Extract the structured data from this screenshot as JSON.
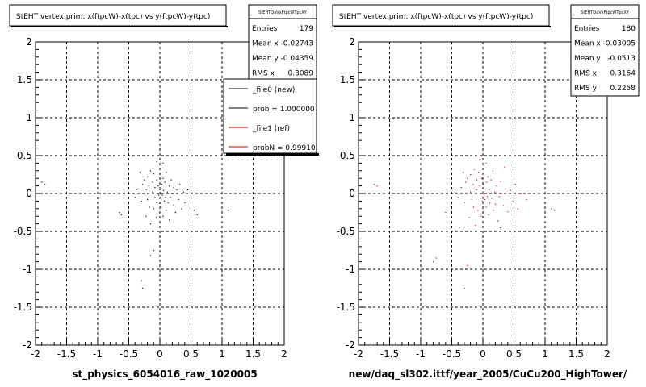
{
  "chart_data": [
    {
      "type": "scatter",
      "title": "StEHT  vertex,prim: x(ftpcW)-x(tpc) vs y(ftpcW)-y(tpc)",
      "xlabel": "st_physics_6054016_raw_1020005",
      "xlim": [
        -2,
        2
      ],
      "ylim": [
        -2,
        2
      ],
      "xticks": [
        "-2",
        "-1.5",
        "-1",
        "-0.5",
        "0",
        "0.5",
        "1",
        "1.5",
        "2"
      ],
      "yticks": [
        "-2",
        "-1.5",
        "-1",
        "-0.5",
        "0",
        "0.5",
        "1",
        "1.5",
        "2"
      ],
      "grid": true,
      "marker_color": "#000000",
      "stats": {
        "name": "StEHTQaVxFtpcWTpcXY",
        "rows": [
          {
            "label": "Entries",
            "value": "179"
          },
          {
            "label": "Mean x",
            "value": "-0.02743"
          },
          {
            "label": "Mean y",
            "value": "-0.04359"
          },
          {
            "label": "RMS x",
            "value": "0.3089"
          }
        ]
      },
      "legend": {
        "placement": "top-right",
        "entries": [
          {
            "label": "_file0 (new)",
            "color": "#000000"
          },
          {
            "label": "prob = 1.000000",
            "color": "#000000"
          },
          {
            "label": "_file1 (ref)",
            "color": "#cc0000"
          },
          {
            "label": "probN = 0.99910",
            "color": "#cc0000"
          }
        ]
      },
      "points": [
        [
          -1.9,
          0.15
        ],
        [
          -1.85,
          0.12
        ],
        [
          -0.65,
          -0.25
        ],
        [
          -0.62,
          -0.28
        ],
        [
          -0.4,
          -0.05
        ],
        [
          -0.38,
          0.05
        ],
        [
          -0.32,
          0.28
        ],
        [
          -0.3,
          -0.1
        ],
        [
          -0.28,
          0.12
        ],
        [
          -0.25,
          0.18
        ],
        [
          -0.22,
          -0.3
        ],
        [
          -0.22,
          0.05
        ],
        [
          -0.2,
          0.22
        ],
        [
          -0.2,
          -0.08
        ],
        [
          -0.18,
          0.1
        ],
        [
          -0.17,
          -0.18
        ],
        [
          -0.15,
          0.3
        ],
        [
          -0.15,
          -0.4
        ],
        [
          -0.12,
          0.02
        ],
        [
          -0.12,
          0.15
        ],
        [
          -0.1,
          -0.2
        ],
        [
          -0.1,
          0.26
        ],
        [
          -0.08,
          0.08
        ],
        [
          -0.08,
          -0.05
        ],
        [
          -0.06,
          -0.32
        ],
        [
          -0.05,
          0.18
        ],
        [
          -0.05,
          -0.12
        ],
        [
          -0.04,
          0.0
        ],
        [
          -0.03,
          0.1
        ],
        [
          -0.02,
          -0.02
        ],
        [
          0.0,
          -0.05
        ],
        [
          0.0,
          0.05
        ],
        [
          0.01,
          0.0
        ],
        [
          0.02,
          -0.08
        ],
        [
          0.02,
          -0.18
        ],
        [
          0.03,
          0.12
        ],
        [
          0.04,
          -0.02
        ],
        [
          0.05,
          0.2
        ],
        [
          0.05,
          -0.3
        ],
        [
          0.06,
          0.04
        ],
        [
          0.07,
          -0.1
        ],
        [
          0.08,
          0.15
        ],
        [
          0.09,
          -0.05
        ],
        [
          0.1,
          0.28
        ],
        [
          0.1,
          -0.22
        ],
        [
          0.12,
          0.02
        ],
        [
          0.13,
          -0.12
        ],
        [
          0.15,
          0.1
        ],
        [
          0.15,
          -0.35
        ],
        [
          0.17,
          -0.05
        ],
        [
          0.18,
          0.18
        ],
        [
          0.2,
          0.0
        ],
        [
          0.22,
          -0.15
        ],
        [
          0.22,
          0.08
        ],
        [
          0.25,
          -0.25
        ],
        [
          0.27,
          0.05
        ],
        [
          0.3,
          -0.08
        ],
        [
          0.32,
          0.12
        ],
        [
          0.35,
          -0.2
        ],
        [
          0.38,
          0.02
        ],
        [
          0.4,
          -0.12
        ],
        [
          0.45,
          0.05
        ],
        [
          0.5,
          -0.05
        ],
        [
          0.55,
          -0.22
        ],
        [
          0.6,
          -0.28
        ],
        [
          1.1,
          -0.22
        ],
        [
          -0.15,
          -0.82
        ],
        [
          -0.1,
          -0.75
        ],
        [
          -0.3,
          -1.15
        ],
        [
          -0.28,
          -1.25
        ],
        [
          0.05,
          0.4
        ],
        [
          -0.05,
          0.42
        ]
      ]
    },
    {
      "type": "scatter",
      "title": "StEHT  vertex,prim: x(ftpcW)-x(tpc) vs y(ftpcW)-y(tpc)",
      "xlabel": "new/daq_sl302.ittf/year_2005/CuCu200_HighTower/",
      "xlim": [
        -2,
        2
      ],
      "ylim": [
        -2,
        2
      ],
      "xticks": [
        "-2",
        "-1.5",
        "-1",
        "-0.5",
        "0",
        "0.5",
        "1",
        "1.5",
        "2"
      ],
      "yticks": [
        "-2",
        "-1.5",
        "-1",
        "-0.5",
        "0",
        "0.5",
        "1",
        "1.5",
        "2"
      ],
      "grid": true,
      "marker_color": "#cc0000",
      "stats": {
        "name": "StEHTQaVxFtpcWTpcXY",
        "rows": [
          {
            "label": "Entries",
            "value": "180"
          },
          {
            "label": "Mean x",
            "value": "-0.03005"
          },
          {
            "label": "Mean y",
            "value": "-0.0513"
          },
          {
            "label": "RMS x",
            "value": "0.3164"
          },
          {
            "label": "RMS y",
            "value": "0.2258"
          }
        ]
      },
      "points": [
        [
          -1.75,
          0.12
        ],
        [
          -1.7,
          0.1
        ],
        [
          -0.8,
          -0.9
        ],
        [
          -0.75,
          -0.85
        ],
        [
          -0.6,
          -0.25
        ],
        [
          -0.4,
          -0.05
        ],
        [
          -0.35,
          0.08
        ],
        [
          -0.32,
          0.28
        ],
        [
          -0.3,
          -0.12
        ],
        [
          -0.28,
          0.15
        ],
        [
          -0.25,
          0.2
        ],
        [
          -0.22,
          -0.32
        ],
        [
          -0.2,
          0.02
        ],
        [
          -0.2,
          0.25
        ],
        [
          -0.18,
          -0.08
        ],
        [
          -0.16,
          0.12
        ],
        [
          -0.15,
          -0.18
        ],
        [
          -0.14,
          0.32
        ],
        [
          -0.12,
          -0.42
        ],
        [
          -0.1,
          0.05
        ],
        [
          -0.1,
          0.18
        ],
        [
          -0.08,
          -0.22
        ],
        [
          -0.07,
          0.28
        ],
        [
          -0.05,
          0.1
        ],
        [
          -0.04,
          -0.06
        ],
        [
          -0.03,
          -0.3
        ],
        [
          -0.02,
          0.2
        ],
        [
          -0.01,
          -0.1
        ],
        [
          0.0,
          0.02
        ],
        [
          0.01,
          0.12
        ],
        [
          0.02,
          -0.02
        ],
        [
          0.03,
          -0.08
        ],
        [
          0.04,
          0.06
        ],
        [
          0.05,
          -0.18
        ],
        [
          0.06,
          0.15
        ],
        [
          0.07,
          -0.04
        ],
        [
          0.08,
          0.22
        ],
        [
          0.09,
          -0.28
        ],
        [
          0.1,
          0.05
        ],
        [
          0.11,
          -0.12
        ],
        [
          0.13,
          0.18
        ],
        [
          0.14,
          -0.06
        ],
        [
          0.16,
          0.3
        ],
        [
          0.17,
          -0.22
        ],
        [
          0.19,
          0.02
        ],
        [
          0.2,
          -0.14
        ],
        [
          0.22,
          0.1
        ],
        [
          0.24,
          -0.36
        ],
        [
          0.26,
          -0.04
        ],
        [
          0.28,
          0.16
        ],
        [
          0.3,
          0.0
        ],
        [
          0.33,
          -0.16
        ],
        [
          0.36,
          0.06
        ],
        [
          0.4,
          -0.24
        ],
        [
          0.44,
          0.04
        ],
        [
          0.48,
          -0.1
        ],
        [
          0.52,
          0.12
        ],
        [
          0.56,
          -0.2
        ],
        [
          0.62,
          0.0
        ],
        [
          0.7,
          -0.08
        ],
        [
          1.1,
          -0.2
        ],
        [
          1.15,
          -0.22
        ],
        [
          -0.25,
          -0.95
        ],
        [
          -0.3,
          -1.25
        ],
        [
          -0.05,
          0.45
        ],
        [
          0.05,
          0.4
        ],
        [
          -0.45,
          0.02
        ],
        [
          0.35,
          0.35
        ],
        [
          -0.38,
          -0.45
        ],
        [
          0.28,
          -0.45
        ]
      ]
    }
  ],
  "footer_text": "                              "
}
